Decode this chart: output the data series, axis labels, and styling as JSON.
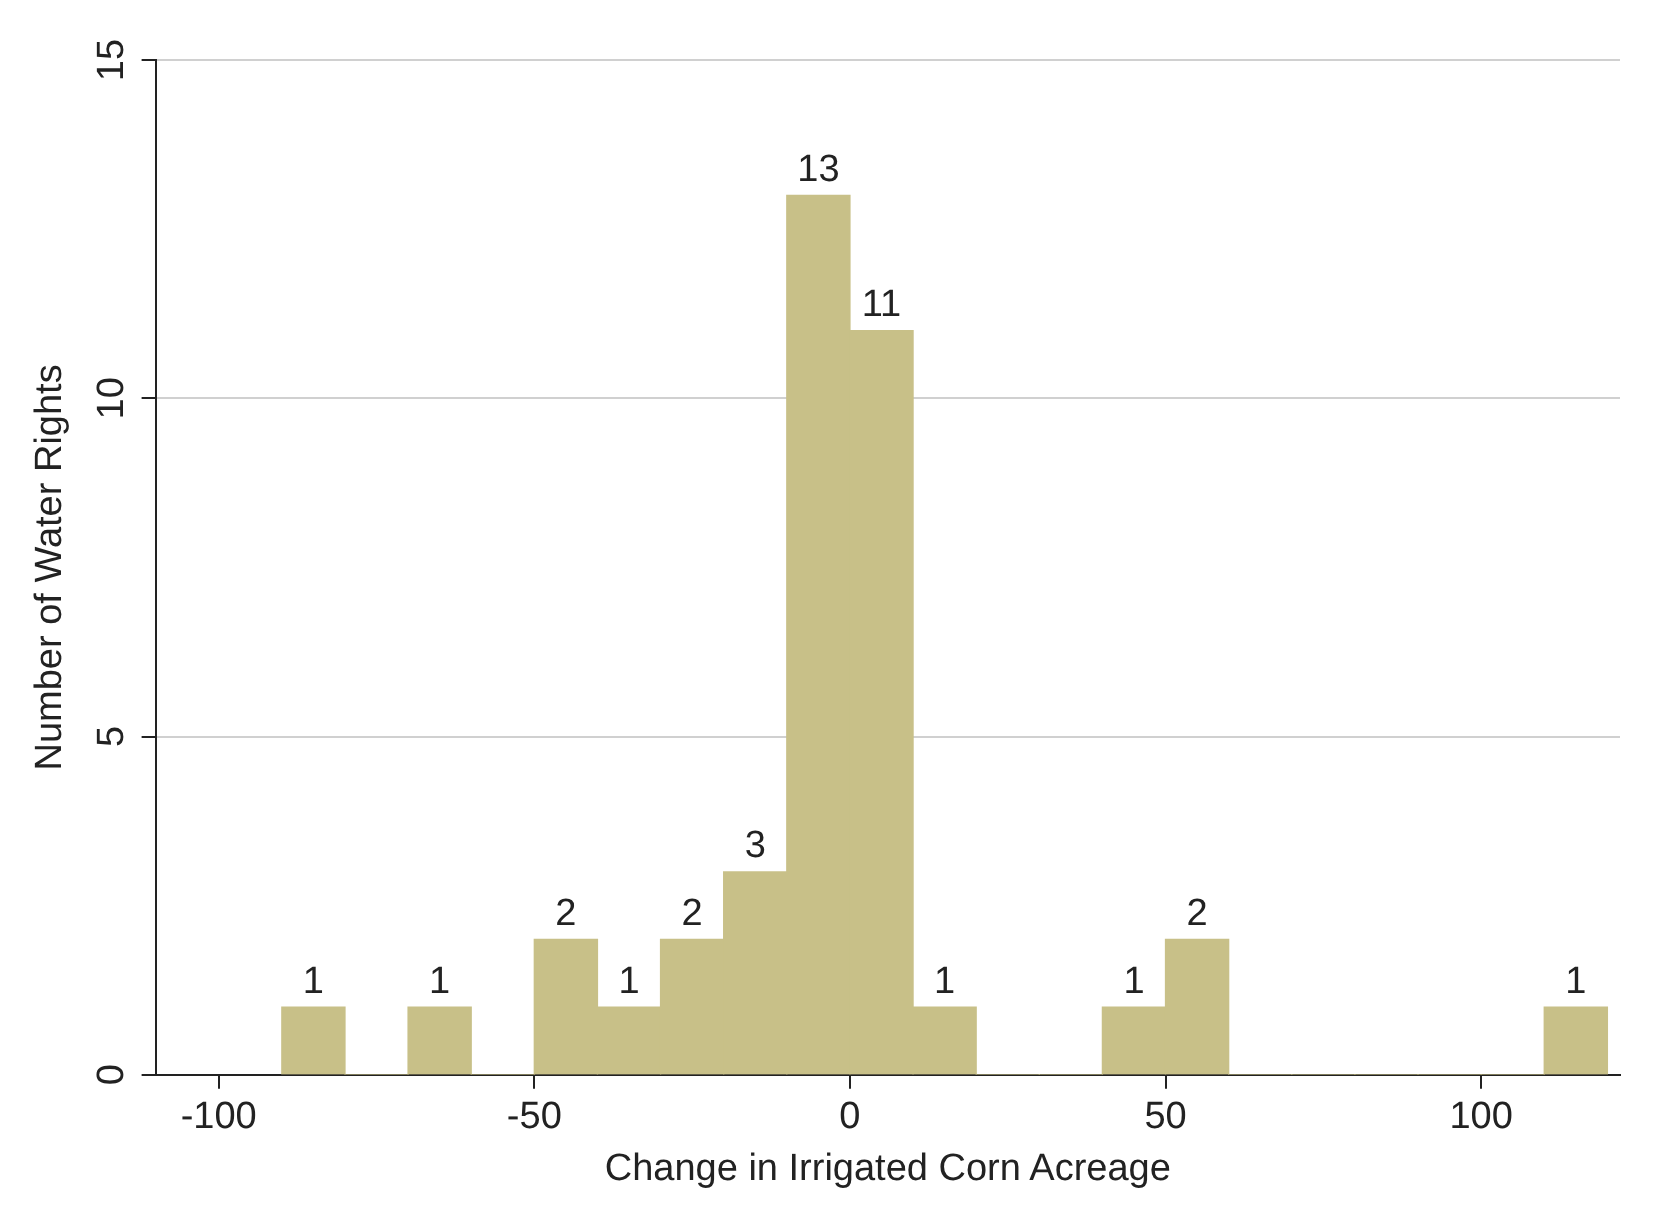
{
  "chart_data": {
    "type": "histogram",
    "xlabel": "Change in Irrigated Corn Acreage",
    "ylabel": "Number of Water Rights",
    "bins": [
      -90,
      -80,
      -70,
      -60,
      -50,
      -40,
      -30,
      -20,
      -10,
      0,
      10,
      20,
      30,
      40,
      50,
      60,
      70,
      80,
      90,
      100,
      110,
      120
    ],
    "values": [
      1,
      0,
      1,
      0,
      2,
      1,
      2,
      3,
      13,
      11,
      1,
      0,
      0,
      1,
      2,
      0,
      0,
      0,
      0,
      0,
      1
    ],
    "value_labels": [
      "1",
      null,
      "1",
      null,
      "2",
      "1",
      "2",
      "3",
      "13",
      "11",
      "1",
      null,
      null,
      "1",
      "2",
      null,
      null,
      null,
      null,
      null,
      "1"
    ],
    "color": "#c8c088",
    "xlim": [
      -110,
      122
    ],
    "xticks": [
      -100,
      -50,
      0,
      50,
      100
    ],
    "ylim": [
      0,
      15
    ],
    "yticks": [
      0,
      5,
      10,
      15
    ],
    "grid": "y",
    "legend": false
  }
}
